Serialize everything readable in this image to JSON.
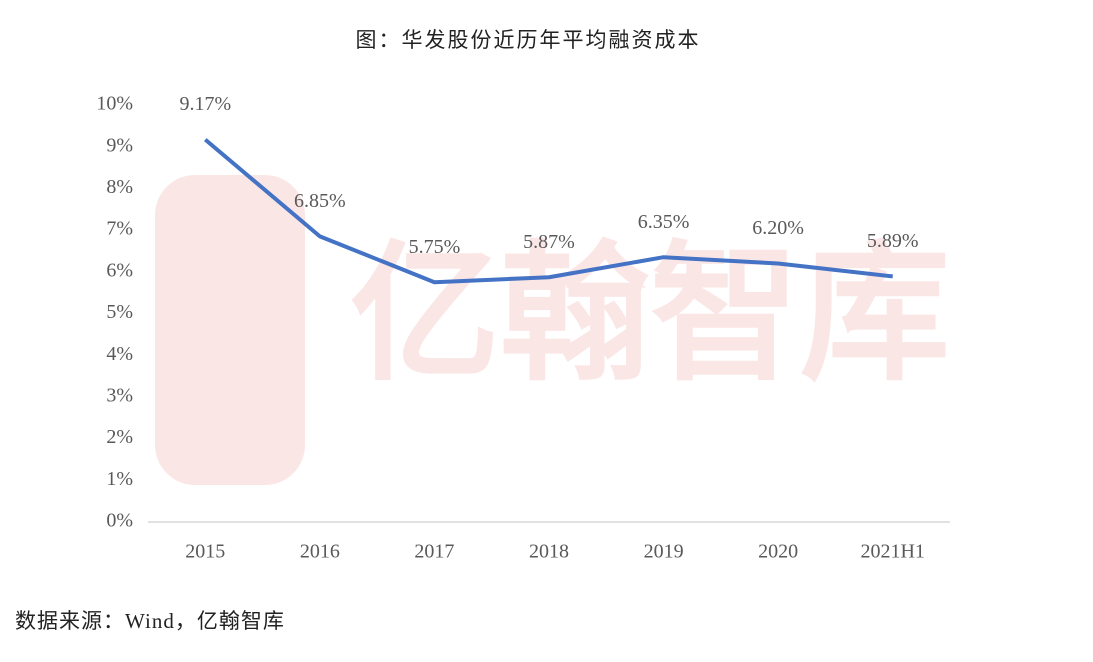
{
  "chart_data": {
    "type": "line",
    "title": "图：华发股份近历年平均融资成本",
    "categories": [
      "2015",
      "2016",
      "2017",
      "2018",
      "2019",
      "2020",
      "2021H1"
    ],
    "series": [
      {
        "color": "#4472c4",
        "values": [
          9.17,
          6.85,
          5.75,
          5.87,
          6.35,
          6.2,
          5.89
        ],
        "value_labels": [
          "9.17%",
          "6.85%",
          "5.75%",
          "5.87%",
          "6.35%",
          "6.20%",
          "5.89%"
        ]
      }
    ],
    "ylim": [
      0,
      10
    ],
    "yticks": [
      {
        "value": 0,
        "label": "0%"
      },
      {
        "value": 1,
        "label": "1%"
      },
      {
        "value": 2,
        "label": "2%"
      },
      {
        "value": 3,
        "label": "3%"
      },
      {
        "value": 4,
        "label": "4%"
      },
      {
        "value": 5,
        "label": "5%"
      },
      {
        "value": 6,
        "label": "6%"
      },
      {
        "value": 7,
        "label": "7%"
      },
      {
        "value": 8,
        "label": "8%"
      },
      {
        "value": 9,
        "label": "9%"
      },
      {
        "value": 10,
        "label": "10%"
      }
    ],
    "grid": false,
    "source": "数据来源：Wind，亿翰智库",
    "watermark": "亿翰智库"
  }
}
